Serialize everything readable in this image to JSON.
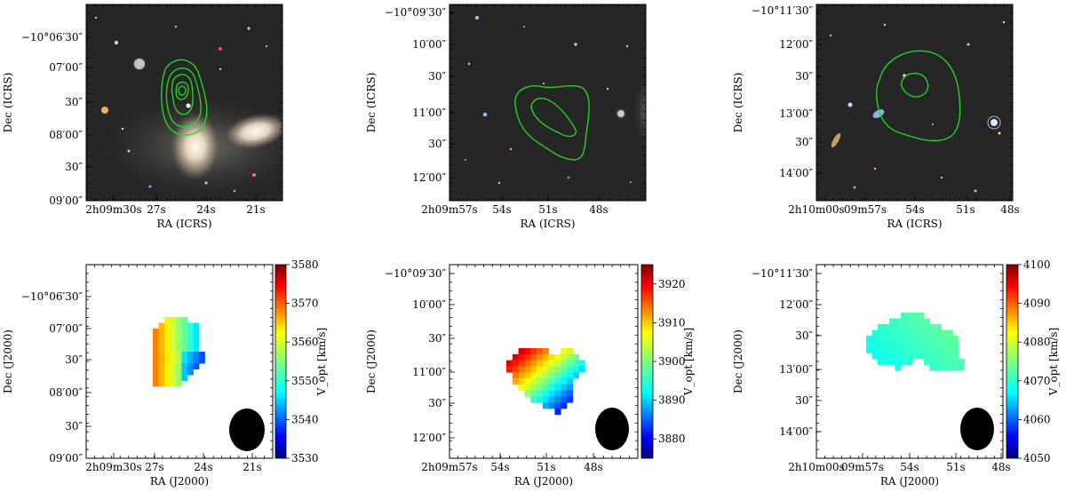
{
  "chart_data": [
    {
      "type": "image",
      "panel": "optical-1",
      "xlabel": "RA (ICRS)",
      "ylabel": "Dec (ICRS)",
      "xticks": [
        "2h09m30s",
        "27s",
        "24s",
        "21s"
      ],
      "yticks": [
        "−10°06′30″",
        "07′00″",
        "30″",
        "08′00″",
        "30″",
        "09′00″"
      ],
      "contour_color": "#22dd22"
    },
    {
      "type": "image",
      "panel": "optical-2",
      "xlabel": "RA (ICRS)",
      "ylabel": "Dec (ICRS)",
      "xticks": [
        "2h09m57s",
        "54s",
        "51s",
        "48s"
      ],
      "yticks": [
        "−10°09′30″",
        "10′00″",
        "30″",
        "11′00″",
        "30″",
        "12′00″"
      ],
      "contour_color": "#22dd22"
    },
    {
      "type": "image",
      "panel": "optical-3",
      "xlabel": "RA (ICRS)",
      "ylabel": "Dec (ICRS)",
      "xticks": [
        "2h10m00s",
        "09m57s",
        "54s",
        "51s",
        "48s"
      ],
      "yticks": [
        "−10°11′30″",
        "12′00″",
        "30″",
        "13′00″",
        "30″",
        "14′00″"
      ],
      "contour_color": "#22dd22"
    },
    {
      "type": "heatmap",
      "panel": "velocity-1",
      "xlabel": "RA (J2000)",
      "ylabel": "Dec (J2000)",
      "xticks": [
        "2h09m30s",
        "27s",
        "24s",
        "21s"
      ],
      "yticks": [
        "−10°06′30″",
        "07′00″",
        "30″",
        "08′00″",
        "30″",
        "09′00″"
      ],
      "colorbar_label": "V_opt [km/s]",
      "colorbar_ticks": [
        3580,
        3570,
        3560,
        3550,
        3540,
        3530
      ],
      "vmin": 3530,
      "vmax": 3580,
      "colormap": "jet",
      "beam": "filled black ellipse"
    },
    {
      "type": "heatmap",
      "panel": "velocity-2",
      "xlabel": "RA (J2000)",
      "ylabel": "Dec (J2000)",
      "xticks": [
        "2h09m57s",
        "54s",
        "51s",
        "48s"
      ],
      "yticks": [
        "−10°09′30″",
        "10′00″",
        "30″",
        "11′00″",
        "30″",
        "12′00″"
      ],
      "colorbar_label": "V_opt [km/s]",
      "colorbar_ticks": [
        3920,
        3910,
        3900,
        3890,
        3880
      ],
      "vmin": 3875,
      "vmax": 3925,
      "colormap": "jet",
      "beam": "filled black ellipse"
    },
    {
      "type": "heatmap",
      "panel": "velocity-3",
      "xlabel": "RA (J2000)",
      "ylabel": "Dec (J2000)",
      "xticks": [
        "2h10m00s",
        "09m57s",
        "54s",
        "51s",
        "48s"
      ],
      "yticks": [
        "−10°11′30″",
        "12′00″",
        "30″",
        "13′00″",
        "30″",
        "14′00″"
      ],
      "colorbar_label": "V_opt [km/s]",
      "colorbar_ticks": [
        4100,
        4090,
        4080,
        4070,
        4060,
        4050
      ],
      "vmin": 4050,
      "vmax": 4100,
      "colormap": "jet",
      "beam": "filled black ellipse"
    }
  ]
}
